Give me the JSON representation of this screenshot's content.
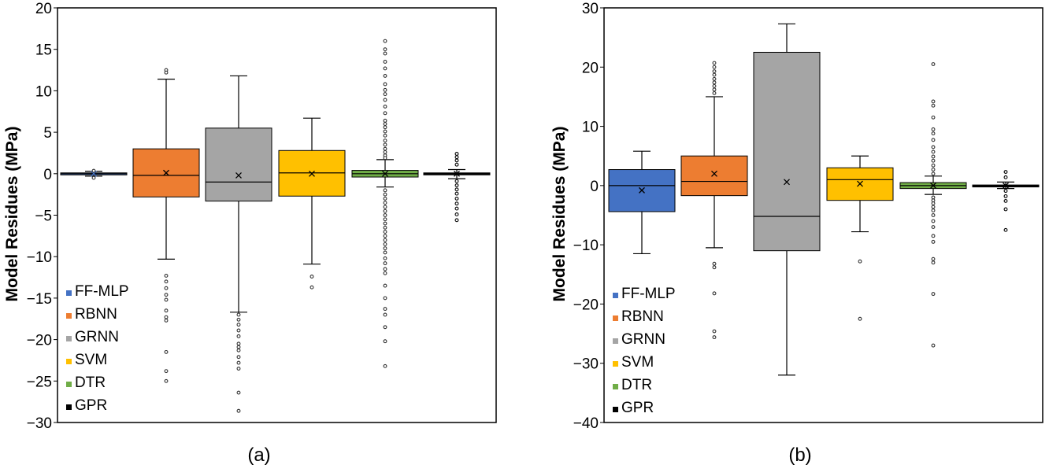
{
  "figure": {
    "panels": [
      "(a)",
      "(b)"
    ]
  },
  "chart_data": [
    {
      "type": "boxplot",
      "panel_label": "(a)",
      "ylabel": "Model Residues (MPa)",
      "ylim": [
        -30,
        20
      ],
      "yticks": [
        20,
        15,
        10,
        5,
        0,
        -5,
        -10,
        -15,
        -20,
        -25,
        -30
      ],
      "ytick_labels": [
        "20",
        "15",
        "10",
        "5",
        "0",
        "−5",
        "−10",
        "−15",
        "−20",
        "−25",
        "−30"
      ],
      "legend": [
        "FF-MLP",
        "RBNN",
        "GRNN",
        "SVM",
        "DTR",
        "GPR"
      ],
      "series": [
        {
          "name": "FF-MLP",
          "color": "#4472C4",
          "median": 0.0,
          "q1": -0.1,
          "q3": 0.1,
          "whisker_low": -0.3,
          "whisker_high": 0.3,
          "mean": 0.0,
          "outliers": [
            0.35,
            -0.5
          ]
        },
        {
          "name": "RBNN",
          "color": "#ED7D31",
          "median": -0.2,
          "q1": -2.8,
          "q3": 3.0,
          "whisker_low": -10.3,
          "whisker_high": 11.4,
          "mean": 0.1,
          "outliers": [
            12.5,
            12.2,
            -12.3,
            -13.0,
            -13.8,
            -14.6,
            -15.2,
            -16.5,
            -17.3,
            -17.7,
            -21.5,
            -23.8,
            -25.0
          ]
        },
        {
          "name": "GRNN",
          "color": "#A5A5A5",
          "median": -1.0,
          "q1": -3.3,
          "q3": 5.5,
          "whisker_low": -16.7,
          "whisker_high": 11.8,
          "mean": -0.2,
          "outliers": [
            -17.0,
            -17.6,
            -18.2,
            -18.9,
            -19.6,
            -20.5,
            -20.9,
            -21.3,
            -22.1,
            -22.8,
            -23.5,
            -26.4,
            -28.6
          ]
        },
        {
          "name": "SVM",
          "color": "#FFC000",
          "median": 0.1,
          "q1": -2.7,
          "q3": 2.8,
          "whisker_low": -10.9,
          "whisker_high": 6.7,
          "mean": 0.0,
          "outliers": [
            -12.4,
            -13.7
          ]
        },
        {
          "name": "DTR",
          "color": "#70AD47",
          "median": 0.0,
          "q1": -0.4,
          "q3": 0.4,
          "whisker_low": -1.6,
          "whisker_high": 1.7,
          "mean": 0.0,
          "outliers": [
            16.0,
            15.0,
            14.5,
            13.5,
            12.7,
            11.8,
            10.8,
            10.1,
            9.6,
            8.9,
            8.1,
            7.3,
            6.4,
            6.0,
            5.6,
            5.1,
            4.6,
            4.0,
            3.5,
            3.0,
            2.6,
            2.2,
            1.9,
            -2.0,
            -2.5,
            -3.0,
            -3.5,
            -4.0,
            -4.5,
            -5.0,
            -5.5,
            -6.0,
            -6.5,
            -7.0,
            -7.5,
            -8.0,
            -8.5,
            -9.0,
            -9.5,
            -10.2,
            -10.8,
            -11.5,
            -12.0,
            -13.5,
            -15.0,
            -16.3,
            -17.0,
            -18.5,
            -20.2,
            -23.2
          ]
        },
        {
          "name": "GPR",
          "color": "#000000",
          "median": 0.0,
          "q1": -0.1,
          "q3": 0.1,
          "whisker_low": -0.6,
          "whisker_high": 0.5,
          "mean": 0.0,
          "outliers": [
            2.4,
            2.0,
            1.6,
            1.1,
            -0.9,
            -1.4,
            -1.9,
            -2.4,
            -3.0,
            -3.6,
            -4.2,
            -4.9,
            -5.6
          ]
        }
      ]
    },
    {
      "type": "boxplot",
      "panel_label": "(b)",
      "ylabel": "Model Residues (MPa)",
      "ylim": [
        -40,
        30
      ],
      "yticks": [
        30,
        20,
        10,
        0,
        -10,
        -20,
        -30,
        -40
      ],
      "ytick_labels": [
        "30",
        "20",
        "10",
        "0",
        "−10",
        "−20",
        "−30",
        "−40"
      ],
      "legend": [
        "FF-MLP",
        "RBNN",
        "GRNN",
        "SVM",
        "DTR",
        "GPR"
      ],
      "series": [
        {
          "name": "FF-MLP",
          "color": "#4472C4",
          "median": 0.0,
          "q1": -4.4,
          "q3": 2.7,
          "whisker_low": -11.5,
          "whisker_high": 5.8,
          "mean": -0.8,
          "outliers": []
        },
        {
          "name": "RBNN",
          "color": "#ED7D31",
          "median": 0.7,
          "q1": -1.7,
          "q3": 5.0,
          "whisker_low": -10.5,
          "whisker_high": 15.0,
          "mean": 2.0,
          "outliers": [
            20.7,
            20.0,
            19.3,
            18.7,
            18.0,
            17.4,
            16.8,
            16.2,
            15.6,
            -13.2,
            -13.8,
            -18.2,
            -24.6,
            -25.6
          ]
        },
        {
          "name": "GRNN",
          "color": "#A5A5A5",
          "median": -5.2,
          "q1": -11.0,
          "q3": 22.5,
          "whisker_low": -32.0,
          "whisker_high": 27.3,
          "mean": 0.6,
          "outliers": []
        },
        {
          "name": "SVM",
          "color": "#FFC000",
          "median": 1.0,
          "q1": -2.5,
          "q3": 3.0,
          "whisker_low": -7.8,
          "whisker_high": 5.0,
          "mean": 0.3,
          "outliers": [
            -12.8,
            -22.5
          ]
        },
        {
          "name": "DTR",
          "color": "#70AD47",
          "median": 0.0,
          "q1": -0.5,
          "q3": 0.5,
          "whisker_low": -1.5,
          "whisker_high": 1.6,
          "mean": 0.0,
          "outliers": [
            20.5,
            14.2,
            13.5,
            11.5,
            9.5,
            8.8,
            7.7,
            6.5,
            5.7,
            4.9,
            4.2,
            3.4,
            2.7,
            2.0,
            -2.0,
            -2.5,
            -3.0,
            -3.6,
            -4.2,
            -5.0,
            -6.0,
            -7.0,
            -8.5,
            -9.5,
            -12.4,
            -13.0,
            -18.3,
            -27.0
          ]
        },
        {
          "name": "GPR",
          "color": "#000000",
          "median": 0.0,
          "q1": -0.1,
          "q3": 0.1,
          "whisker_low": -0.5,
          "whisker_high": 0.6,
          "mean": 0.0,
          "outliers": [
            2.3,
            1.4,
            -0.9,
            -1.8,
            -2.6,
            -4.0,
            -7.5
          ]
        }
      ]
    }
  ]
}
